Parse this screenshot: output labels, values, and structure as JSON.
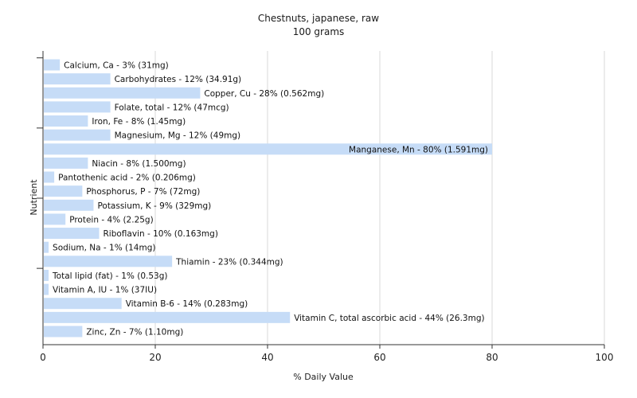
{
  "chart_data": {
    "type": "bar",
    "orientation": "horizontal",
    "title": "Chestnuts, japanese, raw",
    "subtitle": "100 grams",
    "xlabel": "% Daily Value",
    "ylabel": "Nutrient",
    "xlim": [
      0,
      100
    ],
    "xticks": [
      "0",
      "20",
      "40",
      "60",
      "80",
      "100"
    ],
    "grid": true,
    "bar_color": "#c6dcf7",
    "categories": [
      "Calcium, Ca",
      "Carbohydrates",
      "Copper, Cu",
      "Folate, total",
      "Iron, Fe",
      "Magnesium, Mg",
      "Manganese, Mn",
      "Niacin",
      "Pantothenic acid",
      "Phosphorus, P",
      "Potassium, K",
      "Protein",
      "Riboflavin",
      "Sodium, Na",
      "Thiamin",
      "Total lipid (fat)",
      "Vitamin A, IU",
      "Vitamin B-6",
      "Vitamin C, total ascorbic acid",
      "Zinc, Zn"
    ],
    "values": [
      3,
      12,
      28,
      12,
      8,
      12,
      80,
      8,
      2,
      7,
      9,
      4,
      10,
      1,
      23,
      1,
      1,
      14,
      44,
      7
    ],
    "labels": [
      "Calcium, Ca - 3% (31mg)",
      "Carbohydrates - 12% (34.91g)",
      "Copper, Cu - 28% (0.562mg)",
      "Folate, total - 12% (47mcg)",
      "Iron, Fe - 8% (1.45mg)",
      "Magnesium, Mg - 12% (49mg)",
      "Manganese, Mn - 80% (1.591mg)",
      "Niacin - 8% (1.500mg)",
      "Pantothenic acid - 2% (0.206mg)",
      "Phosphorus, P - 7% (72mg)",
      "Potassium, K - 9% (329mg)",
      "Protein - 4% (2.25g)",
      "Riboflavin - 10% (0.163mg)",
      "Sodium, Na - 1% (14mg)",
      "Thiamin - 23% (0.344mg)",
      "Total lipid (fat) - 1% (0.53g)",
      "Vitamin A, IU - 1% (37IU)",
      "Vitamin B-6 - 14% (0.283mg)",
      "Vitamin C, total ascorbic acid - 44% (26.3mg)",
      "Zinc, Zn - 7% (1.10mg)"
    ]
  }
}
